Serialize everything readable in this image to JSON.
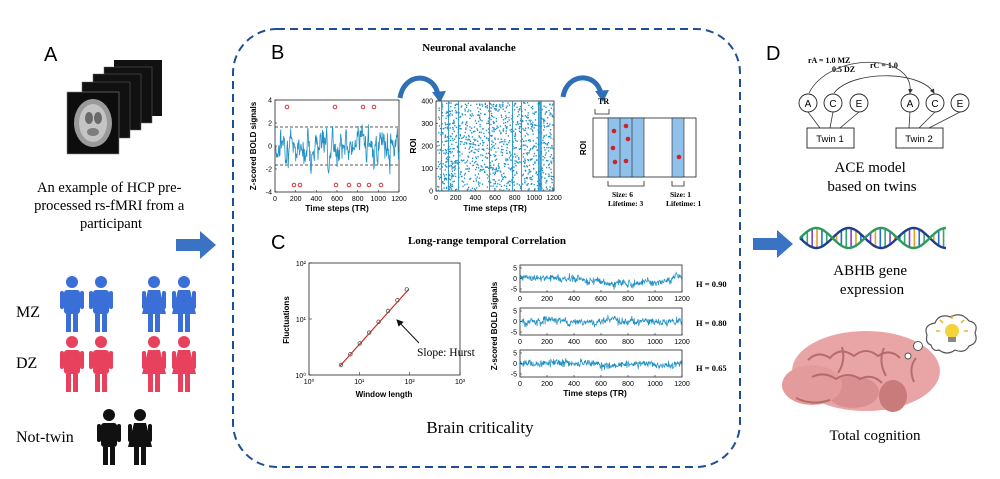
{
  "colors": {
    "signal": "#1f8fc4",
    "dashed_frame": "#1f4e99",
    "arrow": "#3a73c4",
    "mz": "#3a6fd8",
    "dz": "#e8415e",
    "nottwin": "#111111",
    "redline": "#cc2b1e",
    "avalanche_fill": "#8fc1ea",
    "avalanche_dot": "#d0202a"
  },
  "panelA": {
    "letter": "A",
    "caption": [
      "An example of HCP pre-",
      "processed rs-fMRI from a",
      "participant"
    ],
    "groups": {
      "mz": "MZ",
      "dz": "DZ",
      "nottwin": "Not-twin"
    }
  },
  "panelB": {
    "letter": "B",
    "title": "Neuronal avalanche",
    "bold_plot": {
      "ylabel": "Z-scored BOLD signals",
      "xlabel": "Time steps (TR)",
      "yticks": [
        "4",
        "2",
        "0",
        "-2",
        "-4"
      ],
      "xticks": [
        "0",
        "200",
        "400",
        "600",
        "800",
        "1000",
        "1200"
      ]
    },
    "raster_plot": {
      "ylabel": "ROI",
      "xlabel": "Time steps (TR)",
      "yticks": [
        "400",
        "300",
        "200",
        "100",
        "0"
      ],
      "xticks": [
        "0",
        "200",
        "400",
        "600",
        "800",
        "1000",
        "1200"
      ]
    },
    "avalanche_diagram": {
      "tr_label": "TR",
      "ylabel": "ROI",
      "avalanche1": {
        "size": "Size: 6",
        "lifetime": "Lifetime: 3"
      },
      "avalanche2": {
        "size": "Size: 1",
        "lifetime": "Lifetime: 1"
      }
    }
  },
  "panelC": {
    "letter": "C",
    "title": "Long-range temporal Correlation",
    "footer": "Brain criticality",
    "dfa_plot": {
      "ylabel": "Fluctuations",
      "xlabel": "Window length",
      "annotation": "Slope: Hurst",
      "xticks": [
        "10⁰",
        "10¹",
        "10²",
        "10³"
      ],
      "yticks": [
        "10²",
        "10¹",
        "10⁰"
      ]
    },
    "series_plot": {
      "ylabel": "Z-scored BOLD signals",
      "xlabel": "Time steps (TR)",
      "yticks": [
        "5",
        "0",
        "-5"
      ],
      "xticks": [
        "0",
        "200",
        "400",
        "600",
        "800",
        "1000",
        "1200"
      ],
      "hurst": [
        "H = 0.90",
        "H = 0.80",
        "H = 0.65"
      ]
    }
  },
  "panelD": {
    "letter": "D",
    "ace": {
      "ra_line1": "rA = 1.0 MZ",
      "ra_line2": "0.5 DZ",
      "rc": "rC = 1.0",
      "nodes": [
        "A",
        "C",
        "E"
      ],
      "twin1": "Twin 1",
      "twin2": "Twin 2",
      "caption": [
        "ACE model",
        "based on twins"
      ]
    },
    "gene_caption": [
      "ABHB gene",
      "expression"
    ],
    "cognition_caption": "Total cognition"
  }
}
